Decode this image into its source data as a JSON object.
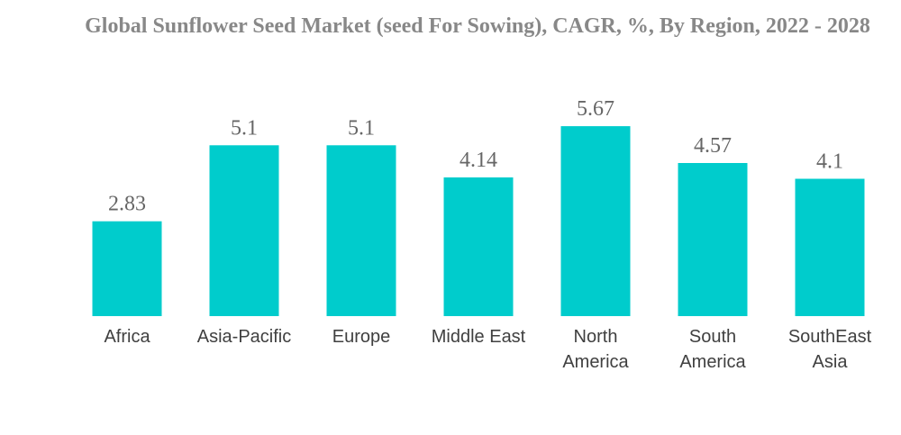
{
  "chart_data": {
    "type": "bar",
    "title": "Global Sunflower Seed Market (seed For Sowing), CAGR, %, By Region, 2022 - 2028",
    "categories": [
      [
        "Africa"
      ],
      [
        "Asia-Pacific"
      ],
      [
        "Europe"
      ],
      [
        "Middle East"
      ],
      [
        "North",
        "America"
      ],
      [
        "South",
        "America"
      ],
      [
        "SouthEast",
        "Asia"
      ]
    ],
    "values": [
      2.83,
      5.1,
      5.1,
      4.14,
      5.67,
      4.57,
      4.1
    ],
    "value_labels": [
      "2.83",
      "5.1",
      "5.1",
      "4.14",
      "5.67",
      "4.57",
      "4.1"
    ],
    "xlabel": "",
    "ylabel": "",
    "ylim": [
      0,
      6
    ],
    "grid": false,
    "legend": "none",
    "bar_color": "#00CCCC"
  }
}
